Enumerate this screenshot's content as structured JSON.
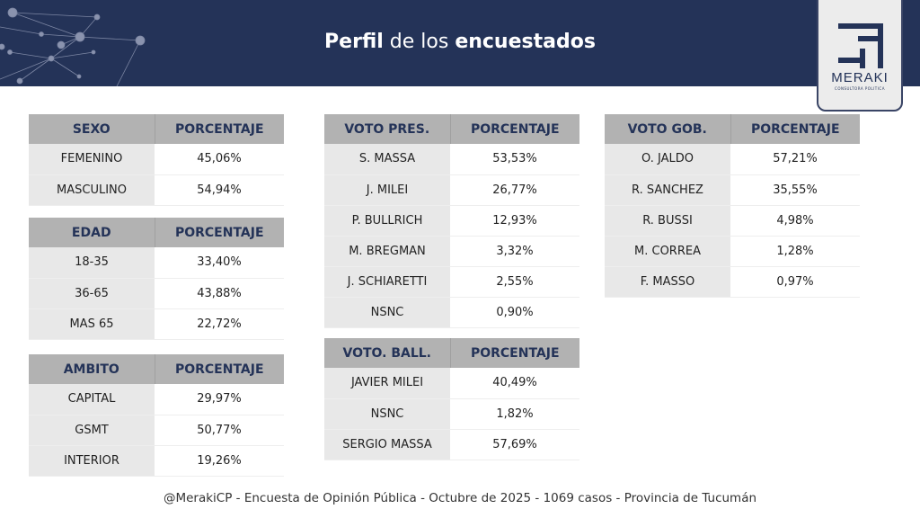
{
  "header": {
    "title_bold1": "Perfil",
    "title_mid": " de los ",
    "title_bold2": "encuestados"
  },
  "logo": {
    "name": "MERAKI",
    "subtitle": "CONSULTORA POLITICA"
  },
  "tables": {
    "sexo": {
      "headers": [
        "SEXO",
        "PORCENTAJE"
      ],
      "rows": [
        [
          "FEMENINO",
          "45,06%"
        ],
        [
          "MASCULINO",
          "54,94%"
        ]
      ]
    },
    "edad": {
      "headers": [
        "EDAD",
        "PORCENTAJE"
      ],
      "rows": [
        [
          "18-35",
          "33,40%"
        ],
        [
          "36-65",
          "43,88%"
        ],
        [
          "MAS 65",
          "22,72%"
        ]
      ]
    },
    "ambito": {
      "headers": [
        "AMBITO",
        "PORCENTAJE"
      ],
      "rows": [
        [
          "CAPITAL",
          "29,97%"
        ],
        [
          "GSMT",
          "50,77%"
        ],
        [
          "INTERIOR",
          "19,26%"
        ]
      ]
    },
    "voto_pres": {
      "headers": [
        "VOTO PRES.",
        "PORCENTAJE"
      ],
      "rows": [
        [
          "S. MASSA",
          "53,53%"
        ],
        [
          "J. MILEI",
          "26,77%"
        ],
        [
          "P. BULLRICH",
          "12,93%"
        ],
        [
          "M. BREGMAN",
          "3,32%"
        ],
        [
          "J. SCHIARETTI",
          "2,55%"
        ],
        [
          "NSNC",
          "0,90%"
        ]
      ]
    },
    "voto_ball": {
      "headers": [
        "VOTO. BALL.",
        "PORCENTAJE"
      ],
      "rows": [
        [
          "JAVIER MILEI",
          "40,49%"
        ],
        [
          "NSNC",
          "1,82%"
        ],
        [
          "SERGIO MASSA",
          "57,69%"
        ]
      ]
    },
    "voto_gob": {
      "headers": [
        "VOTO GOB.",
        "PORCENTAJE"
      ],
      "rows": [
        [
          "O. JALDO",
          "57,21%"
        ],
        [
          "R. SANCHEZ",
          "35,55%"
        ],
        [
          "R. BUSSI",
          "4,98%"
        ],
        [
          "M. CORREA",
          "1,28%"
        ],
        [
          "F. MASSO",
          "0,97%"
        ]
      ]
    }
  },
  "footer": "@MerakiCP - Encuesta de Opinión Pública - Octubre de 2025 - 1069 casos - Provincia de Tucumán"
}
